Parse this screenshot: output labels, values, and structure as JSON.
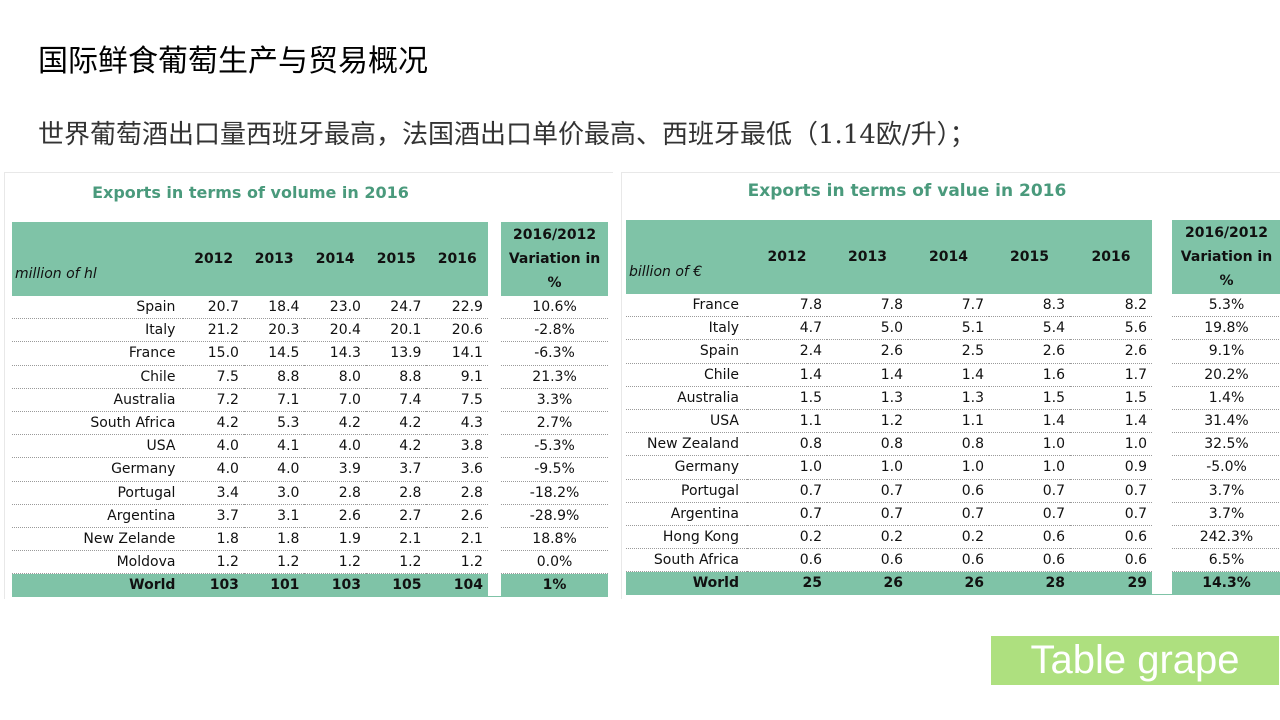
{
  "title": "国际鲜食葡萄生产与贸易概况",
  "subtitle": "世界葡萄酒出口量西班牙最高，法国酒出口单价最高、西班牙最低（1.14欧/升）；",
  "badge": "Table grape",
  "colors": {
    "header_green": "#7fc3a7",
    "caption_green": "#4a9a7c",
    "badge_green": "#aee07f"
  },
  "volume": {
    "caption": "Exports in terms of volume in 2016",
    "unit": "million of hl",
    "years": [
      "2012",
      "2013",
      "2014",
      "2015",
      "2016"
    ],
    "variation_header": [
      "2016/2012",
      "Variation in",
      "%"
    ],
    "rows": [
      {
        "country": "Spain",
        "values": [
          "20.7",
          "18.4",
          "23.0",
          "24.7",
          "22.9"
        ],
        "variation": "10.6%"
      },
      {
        "country": "Italy",
        "values": [
          "21.2",
          "20.3",
          "20.4",
          "20.1",
          "20.6"
        ],
        "variation": "-2.8%"
      },
      {
        "country": "France",
        "values": [
          "15.0",
          "14.5",
          "14.3",
          "13.9",
          "14.1"
        ],
        "variation": "-6.3%"
      },
      {
        "country": "Chile",
        "values": [
          "7.5",
          "8.8",
          "8.0",
          "8.8",
          "9.1"
        ],
        "variation": "21.3%"
      },
      {
        "country": "Australia",
        "values": [
          "7.2",
          "7.1",
          "7.0",
          "7.4",
          "7.5"
        ],
        "variation": "3.3%"
      },
      {
        "country": "South Africa",
        "values": [
          "4.2",
          "5.3",
          "4.2",
          "4.2",
          "4.3"
        ],
        "variation": "2.7%"
      },
      {
        "country": "USA",
        "values": [
          "4.0",
          "4.1",
          "4.0",
          "4.2",
          "3.8"
        ],
        "variation": "-5.3%"
      },
      {
        "country": "Germany",
        "values": [
          "4.0",
          "4.0",
          "3.9",
          "3.7",
          "3.6"
        ],
        "variation": "-9.5%"
      },
      {
        "country": "Portugal",
        "values": [
          "3.4",
          "3.0",
          "2.8",
          "2.8",
          "2.8"
        ],
        "variation": "-18.2%"
      },
      {
        "country": "Argentina",
        "values": [
          "3.7",
          "3.1",
          "2.6",
          "2.7",
          "2.6"
        ],
        "variation": "-28.9%"
      },
      {
        "country": "New Zelande",
        "values": [
          "1.8",
          "1.8",
          "1.9",
          "2.1",
          "2.1"
        ],
        "variation": "18.8%"
      },
      {
        "country": "Moldova",
        "values": [
          "1.2",
          "1.2",
          "1.2",
          "1.2",
          "1.2"
        ],
        "variation": "0.0%"
      }
    ],
    "total": {
      "country": "World",
      "values": [
        "103",
        "101",
        "103",
        "105",
        "104"
      ],
      "variation": "1%"
    }
  },
  "value": {
    "caption": "Exports in terms of value in 2016",
    "unit": "billion of €",
    "years": [
      "2012",
      "2013",
      "2014",
      "2015",
      "2016"
    ],
    "variation_header": [
      "2016/2012",
      "Variation in",
      "%"
    ],
    "rows": [
      {
        "country": "France",
        "values": [
          "7.8",
          "7.8",
          "7.7",
          "8.3",
          "8.2"
        ],
        "variation": "5.3%"
      },
      {
        "country": "Italy",
        "values": [
          "4.7",
          "5.0",
          "5.1",
          "5.4",
          "5.6"
        ],
        "variation": "19.8%"
      },
      {
        "country": "Spain",
        "values": [
          "2.4",
          "2.6",
          "2.5",
          "2.6",
          "2.6"
        ],
        "variation": "9.1%"
      },
      {
        "country": "Chile",
        "values": [
          "1.4",
          "1.4",
          "1.4",
          "1.6",
          "1.7"
        ],
        "variation": "20.2%"
      },
      {
        "country": "Australia",
        "values": [
          "1.5",
          "1.3",
          "1.3",
          "1.5",
          "1.5"
        ],
        "variation": "1.4%"
      },
      {
        "country": "USA",
        "values": [
          "1.1",
          "1.2",
          "1.1",
          "1.4",
          "1.4"
        ],
        "variation": "31.4%"
      },
      {
        "country": "New Zealand",
        "values": [
          "0.8",
          "0.8",
          "0.8",
          "1.0",
          "1.0"
        ],
        "variation": "32.5%"
      },
      {
        "country": "Germany",
        "values": [
          "1.0",
          "1.0",
          "1.0",
          "1.0",
          "0.9"
        ],
        "variation": "-5.0%"
      },
      {
        "country": "Portugal",
        "values": [
          "0.7",
          "0.7",
          "0.6",
          "0.7",
          "0.7"
        ],
        "variation": "3.7%"
      },
      {
        "country": "Argentina",
        "values": [
          "0.7",
          "0.7",
          "0.7",
          "0.7",
          "0.7"
        ],
        "variation": "3.7%"
      },
      {
        "country": "Hong Kong",
        "values": [
          "0.2",
          "0.2",
          "0.2",
          "0.6",
          "0.6"
        ],
        "variation": "242.3%"
      },
      {
        "country": "South Africa",
        "values": [
          "0.6",
          "0.6",
          "0.6",
          "0.6",
          "0.6"
        ],
        "variation": "6.5%"
      }
    ],
    "total": {
      "country": "World",
      "values": [
        "25",
        "26",
        "26",
        "28",
        "29"
      ],
      "variation": "14.3%"
    }
  }
}
